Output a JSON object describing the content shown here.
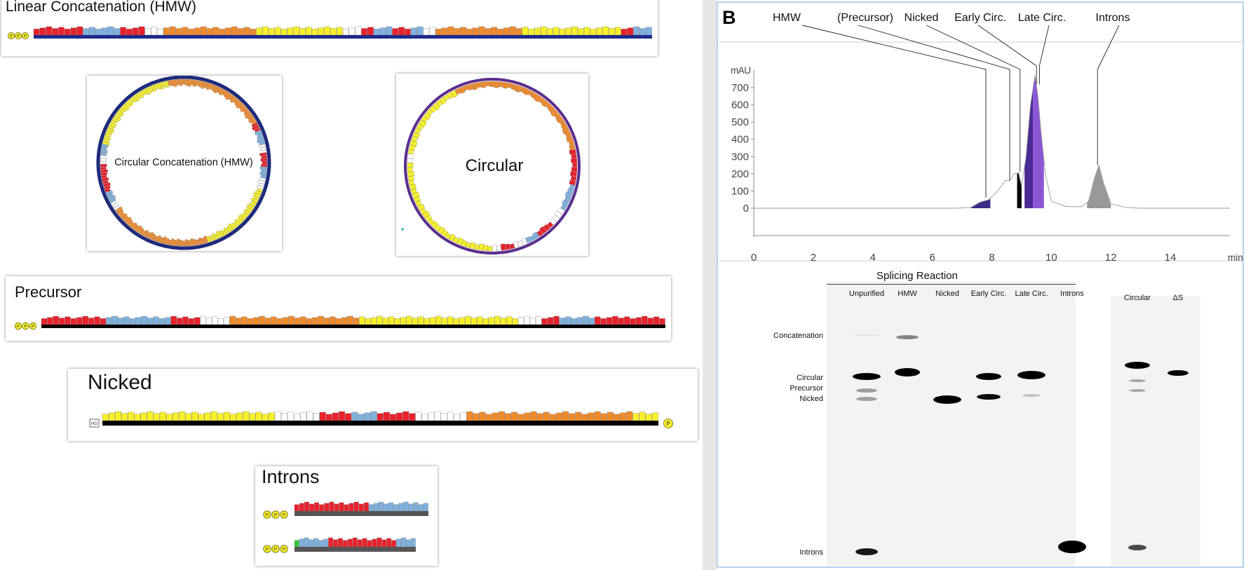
{
  "diagrams": {
    "linear": {
      "title": "Linear Concatenation (HMW)",
      "phosphate": "P",
      "backbone_color": "#1e2a8c"
    },
    "circular_hmw": {
      "title": "Circular Concatenation (HMW)",
      "ring_color": "#1e2a7a"
    },
    "circular": {
      "title": "Circular",
      "ring_color": "#5b2d8e"
    },
    "precursor": {
      "title": "Precursor",
      "phosphate": "P"
    },
    "nicked": {
      "title": "Nicked",
      "hydroxyl": "HO",
      "phosphate": "P"
    },
    "introns": {
      "title": "Introns",
      "phosphate": "P"
    }
  },
  "segment_colors": {
    "red": "#e8212b",
    "blue": "#7fb1de",
    "white": "#ffffff",
    "orange": "#f08a2c",
    "yellow": "#f6f02a",
    "green": "#33cc33",
    "grey": "#b8bfc8"
  },
  "panel_b": {
    "letter": "B",
    "peak_labels": [
      "HMW",
      "(Precursor)",
      "Nicked",
      "Early Circ.",
      "Late Circ.",
      "Introns"
    ],
    "gel_title": "Splicing Reaction",
    "gel_lanes": [
      "Unpurified",
      "HMW",
      "Nicked",
      "Early Circ.",
      "Late Circ.",
      "Introns"
    ],
    "gel2_lanes": [
      "Circular",
      "ΔS"
    ],
    "gel_side_labels": [
      "Concatenation",
      "Circular",
      "Precursor",
      "Nicked",
      "Introns"
    ]
  },
  "chart_data": {
    "type": "line",
    "title": "",
    "xlabel": "min",
    "ylabel": "mAU",
    "xlim": [
      0,
      16
    ],
    "ylim": [
      0,
      750
    ],
    "xticks": [
      0,
      2,
      4,
      6,
      8,
      10,
      12,
      14
    ],
    "yticks": [
      0,
      100,
      200,
      300,
      400,
      500,
      600,
      700
    ],
    "x": [
      0,
      6.8,
      7.3,
      7.6,
      7.9,
      8.2,
      8.45,
      8.6,
      8.75,
      8.9,
      9.0,
      9.15,
      9.3,
      9.45,
      9.55,
      9.65,
      9.8,
      10.0,
      10.5,
      11.0,
      11.25,
      11.45,
      11.6,
      11.75,
      12.0,
      12.5,
      13,
      16
    ],
    "values": [
      0,
      0,
      5,
      35,
      50,
      100,
      160,
      160,
      200,
      205,
      130,
      300,
      600,
      770,
      650,
      450,
      200,
      40,
      10,
      8,
      40,
      175,
      250,
      150,
      25,
      5,
      0,
      0
    ],
    "shaded_peaks": [
      {
        "name": "HMW",
        "x_range": [
          7.3,
          7.95
        ],
        "color": "#3a2f86"
      },
      {
        "name": "Nicked",
        "x_range": [
          8.85,
          9.0
        ],
        "color": "#000000"
      },
      {
        "name": "Early Circ.",
        "x_range": [
          9.1,
          9.38
        ],
        "color": "#4b2a95"
      },
      {
        "name": "Late Circ.",
        "x_range": [
          9.38,
          9.75
        ],
        "color": "#8b56d6"
      },
      {
        "name": "Introns",
        "x_range": [
          11.2,
          12.0
        ],
        "color": "#999999"
      }
    ]
  }
}
